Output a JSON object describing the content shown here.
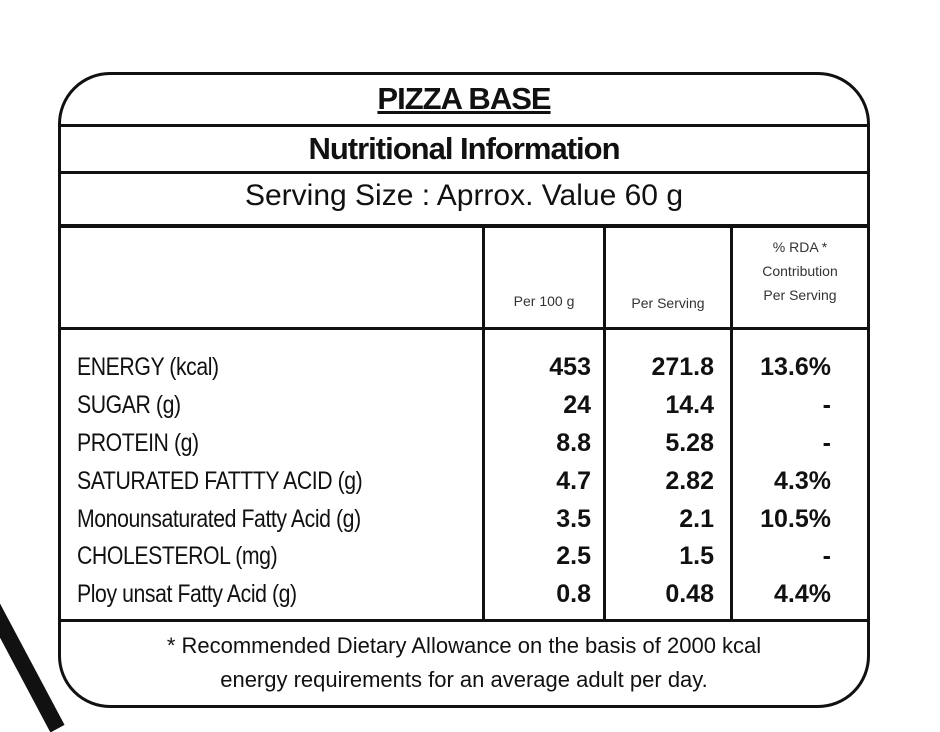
{
  "title": "PIZZA BASE",
  "subtitle": "Nutritional Information",
  "serving": "Serving Size : Aprrox. Value 60 g",
  "columns": {
    "per100": "Per 100 g",
    "perServing": "Per Serving",
    "rda1": "% RDA *",
    "rda2": "Contribution",
    "rda3": "Per Serving"
  },
  "rows": [
    {
      "name": "ENERGY (kcal)",
      "per100": "453",
      "perServing": "271.8",
      "rda": "13.6%"
    },
    {
      "name": "SUGAR (g)",
      "per100": "24",
      "perServing": "14.4",
      "rda": "-"
    },
    {
      "name": "PROTEIN (g)",
      "per100": "8.8",
      "perServing": "5.28",
      "rda": "-"
    },
    {
      "name": "SATURATED FATTTY ACID (g)",
      "per100": "4.7",
      "perServing": "2.82",
      "rda": "4.3%"
    },
    {
      "name": "Monounsaturated Fatty Acid (g)",
      "per100": "3.5",
      "perServing": "2.1",
      "rda": "10.5%"
    },
    {
      "name": "CHOLESTEROL (mg)",
      "per100": "2.5",
      "perServing": "1.5",
      "rda": "-"
    },
    {
      "name": "Ploy unsat Fatty Acid (g)",
      "per100": "0.8",
      "perServing": "0.48",
      "rda": "4.4%"
    }
  ],
  "footnote1": "* Recommended Dietary Allowance on the basis of 2000 kcal",
  "footnote2": "energy requirements for an average adult per day."
}
